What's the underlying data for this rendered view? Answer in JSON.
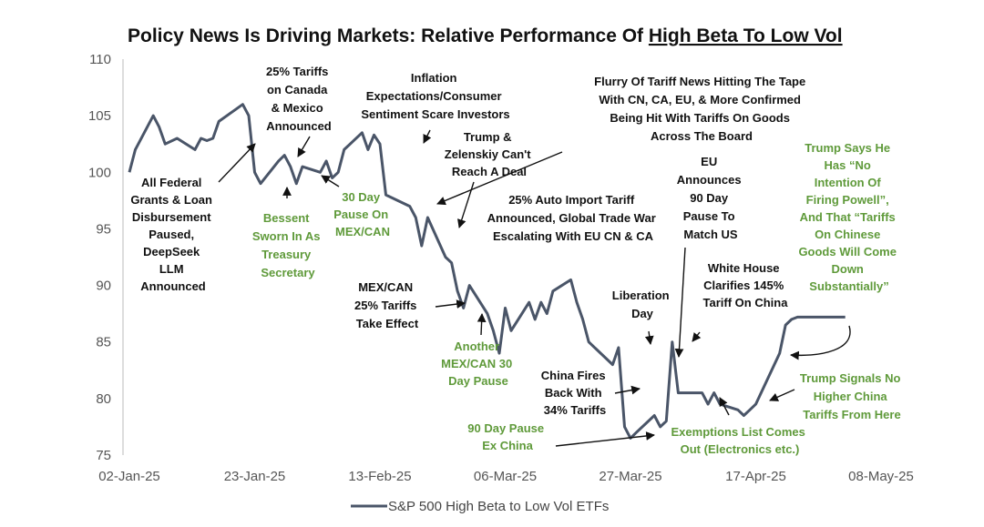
{
  "chart_data": {
    "type": "line",
    "title_prefix": "Policy News Is Driving Markets: Relative Performance Of ",
    "title_underlined": "High Beta To Low Vol",
    "ylim": [
      75,
      110
    ],
    "yticks": [
      "75",
      "80",
      "85",
      "90",
      "95",
      "100",
      "105",
      "110"
    ],
    "xticks": [
      "02-Jan-25",
      "23-Jan-25",
      "13-Feb-25",
      "06-Mar-25",
      "27-Mar-25",
      "17-Apr-25",
      "08-May-25"
    ],
    "xtick_offsets_days": [
      0,
      21,
      42,
      63,
      84,
      105,
      126
    ],
    "xlim_days": [
      0,
      126
    ],
    "grid": false,
    "legend_position": "bottom-center",
    "line_color": "#4a5568",
    "series": [
      {
        "name": "S&P 500 High Beta to Low Vol ETFs",
        "x": [
          "2025-01-02",
          "2025-01-03",
          "2025-01-06",
          "2025-01-07",
          "2025-01-08",
          "2025-01-10",
          "2025-01-13",
          "2025-01-14",
          "2025-01-15",
          "2025-01-16",
          "2025-01-17",
          "2025-01-21",
          "2025-01-22",
          "2025-01-23",
          "2025-01-24",
          "2025-01-27",
          "2025-01-28",
          "2025-01-29",
          "2025-01-30",
          "2025-01-31",
          "2025-02-03",
          "2025-02-04",
          "2025-02-05",
          "2025-02-06",
          "2025-02-07",
          "2025-02-10",
          "2025-02-11",
          "2025-02-12",
          "2025-02-13",
          "2025-02-14",
          "2025-02-18",
          "2025-02-19",
          "2025-02-20",
          "2025-02-21",
          "2025-02-24",
          "2025-02-25",
          "2025-02-26",
          "2025-02-27",
          "2025-02-28",
          "2025-03-03",
          "2025-03-04",
          "2025-03-05",
          "2025-03-06",
          "2025-03-07",
          "2025-03-10",
          "2025-03-11",
          "2025-03-12",
          "2025-03-13",
          "2025-03-14",
          "2025-03-17",
          "2025-03-18",
          "2025-03-19",
          "2025-03-20",
          "2025-03-21",
          "2025-03-24",
          "2025-03-25",
          "2025-03-26",
          "2025-03-27",
          "2025-03-28",
          "2025-03-31",
          "2025-04-01",
          "2025-04-02",
          "2025-04-03",
          "2025-04-04",
          "2025-04-07",
          "2025-04-08",
          "2025-04-09",
          "2025-04-10",
          "2025-04-11",
          "2025-04-14",
          "2025-04-15",
          "2025-04-16",
          "2025-04-17",
          "2025-04-21",
          "2025-04-22",
          "2025-04-23",
          "2025-04-24",
          "2025-04-25",
          "2025-04-28",
          "2025-04-29",
          "2025-04-30",
          "2025-05-01",
          "2025-05-02"
        ],
        "y": [
          100,
          102,
          105,
          104,
          102.5,
          103,
          102,
          103,
          102.8,
          103,
          104.5,
          106,
          105,
          100,
          99,
          101,
          101.5,
          100.5,
          99,
          100.5,
          100,
          101,
          99.5,
          100,
          102,
          103.5,
          102,
          103.3,
          102.5,
          98,
          97,
          96,
          93.5,
          96,
          92.5,
          92,
          89.5,
          88,
          90,
          87.5,
          86,
          84,
          88,
          86,
          88.5,
          87,
          88.5,
          87.5,
          89.5,
          90.5,
          88.5,
          87,
          85,
          84.5,
          83,
          84.5,
          77.5,
          76.5,
          77,
          78.5,
          77.5,
          78,
          85,
          80.5,
          80.5,
          80.5,
          79.5,
          80.5,
          79.5,
          79,
          78.5,
          79,
          79.5,
          84,
          86.5,
          87,
          87.2,
          87.2,
          87.2,
          87.2,
          87.2,
          87.2,
          87.2
        ]
      }
    ],
    "annotations": [
      {
        "color": "black",
        "lines": [
          "All Federal",
          "Grants & Loan",
          "Disbursement",
          "Paused,",
          "DeepSeek",
          "LLM",
          "Announced"
        ]
      },
      {
        "color": "black",
        "lines": [
          "25% Tariffs",
          "on Canada",
          "& Mexico",
          "Announced"
        ]
      },
      {
        "color": "green",
        "lines": [
          "Bessent",
          "Sworn In As",
          "Treasury",
          "Secretary"
        ]
      },
      {
        "color": "green",
        "lines": [
          "30 Day",
          "Pause On",
          "MEX/CAN"
        ]
      },
      {
        "color": "black",
        "lines": [
          "Inflation",
          "Expectations/Consumer",
          "Sentiment Scare Investors"
        ]
      },
      {
        "color": "black",
        "lines": [
          "Trump &",
          "Zelenskiy Can't",
          "Reach A Deal"
        ]
      },
      {
        "color": "black",
        "lines": [
          "Flurry Of Tariff News Hitting The Tape",
          "With CN, CA, EU, & More Confirmed",
          "Being Hit With Tariffs On Goods",
          "Across The Board"
        ]
      },
      {
        "color": "black",
        "lines": [
          "25% Auto Import Tariff",
          "Announced, Global Trade War",
          "Escalating With EU CN & CA"
        ]
      },
      {
        "color": "black",
        "lines": [
          "EU",
          "Announces",
          "90 Day",
          "Pause To",
          "Match US"
        ]
      },
      {
        "color": "green",
        "lines": [
          "Trump Says He",
          "Has “No",
          "Intention Of",
          "Firing Powell”,",
          "And That “Tariffs",
          "On Chinese",
          "Goods Will Come",
          "Down",
          "Substantially”"
        ]
      },
      {
        "color": "black",
        "lines": [
          "MEX/CAN",
          "25% Tariffs",
          "Take Effect"
        ]
      },
      {
        "color": "green",
        "lines": [
          "Another",
          "MEX/CAN 30",
          "Day Pause"
        ]
      },
      {
        "color": "black",
        "lines": [
          "Liberation",
          "Day"
        ]
      },
      {
        "color": "black",
        "lines": [
          "White House",
          "Clarifies 145%",
          "Tariff On China"
        ]
      },
      {
        "color": "black",
        "lines": [
          "China Fires",
          "Back With",
          "34% Tariffs"
        ]
      },
      {
        "color": "green",
        "lines": [
          "90 Day Pause",
          "Ex China"
        ]
      },
      {
        "color": "green",
        "lines": [
          "Exemptions List Comes",
          "Out (Electronics etc.)"
        ]
      },
      {
        "color": "green",
        "lines": [
          "Trump Signals No",
          "Higher China",
          "Tariffs From Here"
        ]
      }
    ]
  }
}
